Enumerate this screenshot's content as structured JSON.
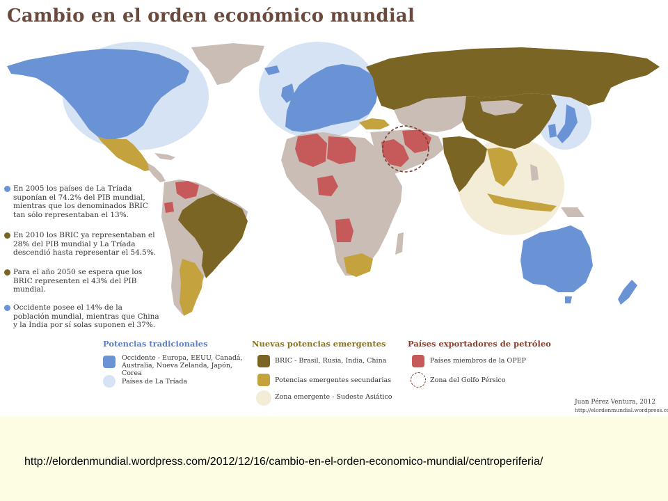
{
  "title": "Cambio en el orden económico mundial",
  "colors": {
    "occidente": "#6a93d6",
    "triada": "#d6e3f5",
    "bric": "#7a6524",
    "secundarias": "#c4a33e",
    "sudeste": "#f3ecd6",
    "opep": "#c65a5a",
    "rest": "#c9bdb6",
    "text_blue": "#5c7fc4",
    "text_olive": "#8a7322",
    "text_brown": "#8a3f2c"
  },
  "notes": [
    {
      "color_key": "occidente",
      "text": "En 2005 los países de La Tríada suponían el 74.2% del PIB mundial, mientras que los denominados BRIC tan sólo representaban el 13%."
    },
    {
      "color_key": "bric",
      "text": "En 2010 los BRIC ya representaban el 28% del PIB mundial y La Tríada descendió hasta representar el 54.5%."
    },
    {
      "color_key": "bric",
      "text": "Para el año 2050 se espera que los BRIC representen el 43% del PIB mundial."
    },
    {
      "color_key": "occidente",
      "text": "Occidente posee el 14% de la población mundial, mientras que China y la India por sí solas suponen el 37%."
    }
  ],
  "legend": {
    "tradicionales": {
      "heading": "Potencias tradicionales",
      "items": [
        "Occidente - Europa, EEUU, Canadá, Australia, Nueva Zelanda, Japón, Corea",
        "Países de La Tríada"
      ]
    },
    "emergentes": {
      "heading": "Nuevas potencias emergentes",
      "items": [
        "BRIC - Brasil, Rusia, India, China",
        "Potencias emergentes secundarias",
        "Zona emergente - Sudeste Asiático"
      ]
    },
    "petroleo": {
      "heading": "Países exportadores de petróleo",
      "items": [
        "Países miembros de la OPEP",
        "Zona del Golfo Pérsico"
      ]
    }
  },
  "credit": {
    "author": "Juan Pérez Ventura, 2012",
    "site": "http://elordenmundial.wordpress.com"
  },
  "source_url": "http://elordenmundial.wordpress.com/2012/12/16/cambio-en-el-orden-economico-mundial/centroperiferia/"
}
